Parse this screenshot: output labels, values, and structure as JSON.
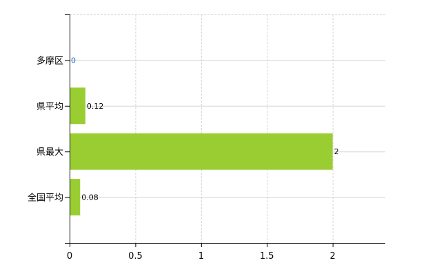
{
  "chart_data": {
    "type": "bar",
    "orientation": "horizontal",
    "title": "",
    "xlabel": "",
    "ylabel": "",
    "categories": [
      "多摩区",
      "県平均",
      "県最大",
      "全国平均"
    ],
    "values": [
      0,
      0.12,
      2,
      0.08
    ],
    "data_labels": [
      "0",
      "0.12",
      "2",
      "0.08"
    ],
    "xlim": [
      0,
      2.4
    ],
    "xticks": [
      0,
      0.5,
      1,
      1.5,
      2
    ],
    "xtick_labels": [
      "0",
      "0.5",
      "1",
      "1.5",
      "2"
    ],
    "grid": true,
    "legend": "none",
    "colors": {
      "bar": "#9acd32",
      "data_label_zero": "#1e6fc8",
      "grid": "#d3d3d3",
      "axis": "#000000"
    }
  }
}
